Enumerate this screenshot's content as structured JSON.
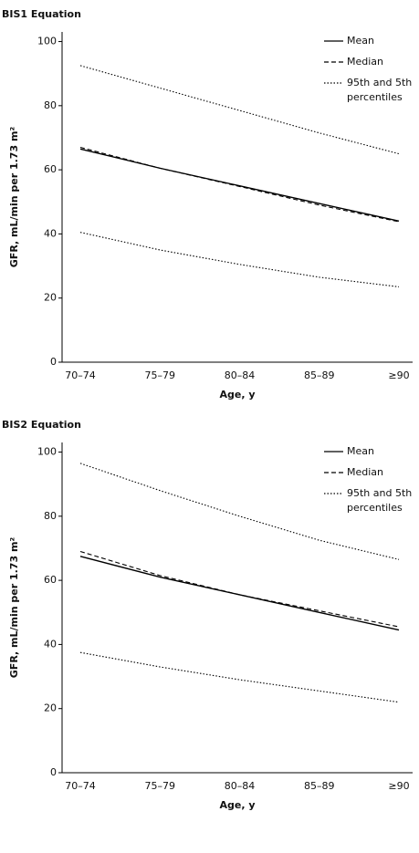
{
  "chart_data": [
    {
      "type": "line",
      "title": "BIS1 Equation",
      "xlabel": "Age, y",
      "ylabel": "GFR, mL/min per 1.73 m²",
      "categories": [
        "70–74",
        "75–79",
        "80–84",
        "85–89",
        "≥90"
      ],
      "series": [
        {
          "name": "Mean",
          "color": "#000000",
          "dash": "solid",
          "values": [
            66.5,
            60.5,
            55,
            49.5,
            44
          ]
        },
        {
          "name": "Median",
          "color": "#000000",
          "dash": "dashed",
          "values": [
            67,
            60.5,
            54.8,
            49,
            43.8
          ]
        },
        {
          "name": "95th and 5th percentiles",
          "color": "#000000",
          "dash": "dotted",
          "values": [
            92.5,
            85.5,
            78.5,
            71.5,
            65
          ]
        },
        {
          "color": "#000000",
          "dash": "dotted",
          "values": [
            40.5,
            35,
            30.5,
            26.5,
            23.5
          ]
        }
      ],
      "ylim": [
        0,
        103
      ],
      "yticks": [
        0,
        20,
        40,
        60,
        80,
        100
      ],
      "legend": "top-right"
    },
    {
      "type": "line",
      "title": "BIS2 Equation",
      "xlabel": "Age, y",
      "ylabel": "GFR, mL/min per 1.73 m²",
      "categories": [
        "70–74",
        "75–79",
        "80–84",
        "85–89",
        "≥90"
      ],
      "series": [
        {
          "name": "Mean",
          "color": "#000000",
          "dash": "solid",
          "values": [
            67.5,
            61,
            55.5,
            50,
            44.5
          ]
        },
        {
          "name": "Median",
          "color": "#000000",
          "dash": "dashed",
          "values": [
            69,
            61.5,
            55.5,
            50.5,
            45.5
          ]
        },
        {
          "name": "95th and 5th percentiles",
          "color": "#000000",
          "dash": "dotted",
          "values": [
            96.5,
            88,
            80,
            72.5,
            66.5
          ]
        },
        {
          "color": "#000000",
          "dash": "dotted",
          "values": [
            37.5,
            33,
            29,
            25.5,
            22
          ]
        }
      ],
      "ylim": [
        0,
        103
      ],
      "yticks": [
        0,
        20,
        40,
        60,
        80,
        100
      ],
      "legend": "top-right"
    }
  ]
}
